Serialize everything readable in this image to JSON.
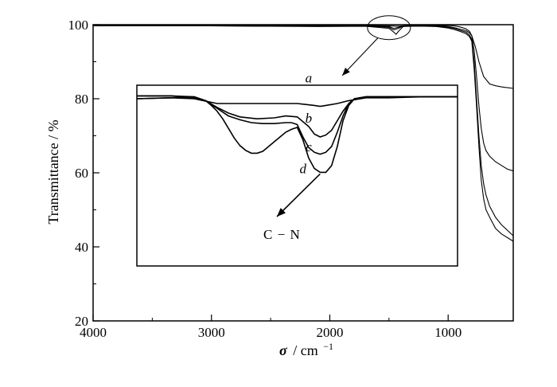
{
  "chart_data": {
    "type": "line",
    "title": "",
    "xlabel": "σ / cm⁻¹",
    "xlabel_parts": {
      "sigma": "σ",
      "unit": "/ cm",
      "exp": "−1"
    },
    "ylabel": "Transmittance / %",
    "xlim": [
      4000,
      450
    ],
    "ylim": [
      20,
      100
    ],
    "x_reversed": true,
    "grid": false,
    "legend": "none",
    "x_ticks": [
      {
        "value": 4000,
        "label": "4000"
      },
      {
        "value": 3000,
        "label": "3000"
      },
      {
        "value": 2000,
        "label": "2000"
      },
      {
        "value": 1000,
        "label": "1000"
      }
    ],
    "y_ticks": [
      {
        "value": 20,
        "label": "20"
      },
      {
        "value": 40,
        "label": "40"
      },
      {
        "value": 60,
        "label": "60"
      },
      {
        "value": 80,
        "label": "80"
      },
      {
        "value": 100,
        "label": "100"
      }
    ],
    "series": [
      {
        "x": [
          4000,
          3500,
          3000,
          2500,
          2100,
          1700,
          1500,
          1420,
          1380,
          1300,
          1200,
          1100,
          1000,
          950,
          900,
          850,
          820,
          800,
          770,
          740,
          700,
          650,
          600,
          550,
          500,
          450
        ],
        "y": [
          99.8,
          99.8,
          99.8,
          99.8,
          99.8,
          99.8,
          99.7,
          99.6,
          99.7,
          99.8,
          99.8,
          99.8,
          99.8,
          99.7,
          99.4,
          98.9,
          98.2,
          97.0,
          94.0,
          90.0,
          86.0,
          84.0,
          83.5,
          83.2,
          83.0,
          82.8
        ]
      },
      {
        "x": [
          4000,
          3500,
          3000,
          2500,
          2100,
          1700,
          1500,
          1460,
          1420,
          1380,
          1300,
          1200,
          1100,
          1000,
          950,
          900,
          850,
          820,
          800,
          780,
          760,
          740,
          720,
          700,
          680,
          650,
          600,
          550,
          500,
          450
        ],
        "y": [
          99.8,
          99.8,
          99.8,
          99.7,
          99.7,
          99.8,
          99.5,
          99.0,
          99.3,
          99.7,
          99.8,
          99.8,
          99.7,
          99.5,
          99.2,
          98.8,
          98.4,
          97.8,
          97.0,
          93.0,
          86.0,
          78.0,
          72.0,
          68.0,
          66.0,
          64.5,
          63.0,
          62.0,
          61.0,
          60.5
        ]
      },
      {
        "x": [
          4000,
          3500,
          3000,
          2500,
          2100,
          1700,
          1500,
          1460,
          1420,
          1380,
          1300,
          1200,
          1100,
          1000,
          950,
          900,
          850,
          820,
          800,
          780,
          760,
          740,
          720,
          700,
          680,
          650,
          600,
          550,
          500,
          450
        ],
        "y": [
          99.7,
          99.7,
          99.7,
          99.6,
          99.6,
          99.7,
          99.3,
          98.6,
          99.0,
          99.6,
          99.7,
          99.7,
          99.6,
          99.3,
          99.0,
          98.5,
          98.0,
          97.2,
          96.0,
          90.0,
          80.0,
          70.0,
          62.0,
          57.0,
          54.0,
          51.0,
          48.0,
          46.0,
          44.5,
          43.0
        ]
      },
      {
        "x": [
          4000,
          3500,
          3000,
          2500,
          2100,
          1700,
          1500,
          1460,
          1440,
          1420,
          1380,
          1300,
          1200,
          1100,
          1000,
          950,
          900,
          850,
          820,
          800,
          780,
          760,
          740,
          720,
          700,
          680,
          650,
          600,
          550,
          500,
          450
        ],
        "y": [
          99.7,
          99.7,
          99.7,
          99.6,
          99.5,
          99.6,
          99.0,
          98.0,
          97.4,
          98.2,
          99.5,
          99.6,
          99.6,
          99.5,
          99.1,
          98.7,
          98.2,
          97.6,
          96.8,
          95.5,
          88.0,
          78.0,
          67.0,
          58.0,
          53.0,
          50.0,
          48.0,
          45.0,
          43.5,
          42.5,
          41.5
        ]
      }
    ],
    "inset": {
      "xlim": [
        3700,
        900
      ],
      "series": [
        {
          "name": "a",
          "x": [
            3700,
            3400,
            3200,
            3000,
            2800,
            2500,
            2300,
            2150,
            2100,
            2050,
            1950,
            1850,
            1700,
            1500,
            1200,
            900
          ],
          "y": [
            0.95,
            0.96,
            0.95,
            0.9,
            0.9,
            0.9,
            0.9,
            0.88,
            0.87,
            0.88,
            0.9,
            0.93,
            0.96,
            0.96,
            0.97,
            0.97
          ]
        },
        {
          "name": "b",
          "x": [
            3700,
            3400,
            3200,
            3100,
            3000,
            2900,
            2800,
            2650,
            2500,
            2400,
            2300,
            2200,
            2150,
            2100,
            2050,
            2000,
            1950,
            1900,
            1850,
            1800,
            1700,
            1500,
            1200,
            900
          ],
          "y": [
            0.98,
            0.98,
            0.96,
            0.93,
            0.86,
            0.8,
            0.76,
            0.74,
            0.75,
            0.77,
            0.76,
            0.66,
            0.58,
            0.55,
            0.57,
            0.62,
            0.72,
            0.82,
            0.9,
            0.95,
            0.97,
            0.97,
            0.97,
            0.97
          ]
        },
        {
          "name": "c",
          "x": [
            3700,
            3400,
            3200,
            3100,
            3000,
            2900,
            2800,
            2700,
            2600,
            2500,
            2400,
            2350,
            2300,
            2250,
            2200,
            2150,
            2100,
            2050,
            2000,
            1950,
            1900,
            1850,
            1800,
            1700,
            1500,
            1200,
            900
          ],
          "y": [
            0.98,
            0.98,
            0.97,
            0.93,
            0.85,
            0.77,
            0.73,
            0.7,
            0.69,
            0.69,
            0.7,
            0.7,
            0.68,
            0.55,
            0.44,
            0.39,
            0.37,
            0.39,
            0.45,
            0.6,
            0.77,
            0.9,
            0.95,
            0.97,
            0.97,
            0.97,
            0.97
          ]
        },
        {
          "name": "d",
          "x": [
            3700,
            3400,
            3200,
            3100,
            3050,
            3000,
            2950,
            2900,
            2850,
            2800,
            2750,
            2700,
            2650,
            2600,
            2550,
            2500,
            2450,
            2400,
            2350,
            2300,
            2250,
            2200,
            2150,
            2100,
            2050,
            2000,
            1950,
            1900,
            1850,
            1800,
            1700,
            1500,
            1200,
            900
          ],
          "y": [
            0.95,
            0.96,
            0.97,
            0.93,
            0.88,
            0.82,
            0.74,
            0.64,
            0.54,
            0.46,
            0.41,
            0.38,
            0.38,
            0.4,
            0.45,
            0.5,
            0.55,
            0.6,
            0.63,
            0.65,
            0.52,
            0.33,
            0.22,
            0.18,
            0.18,
            0.25,
            0.45,
            0.72,
            0.88,
            0.95,
            0.97,
            0.97,
            0.97,
            0.97
          ]
        }
      ],
      "annotation": "C−N",
      "annotation_parts": {
        "left": "C",
        "dash": "−",
        "right": "N"
      }
    }
  }
}
